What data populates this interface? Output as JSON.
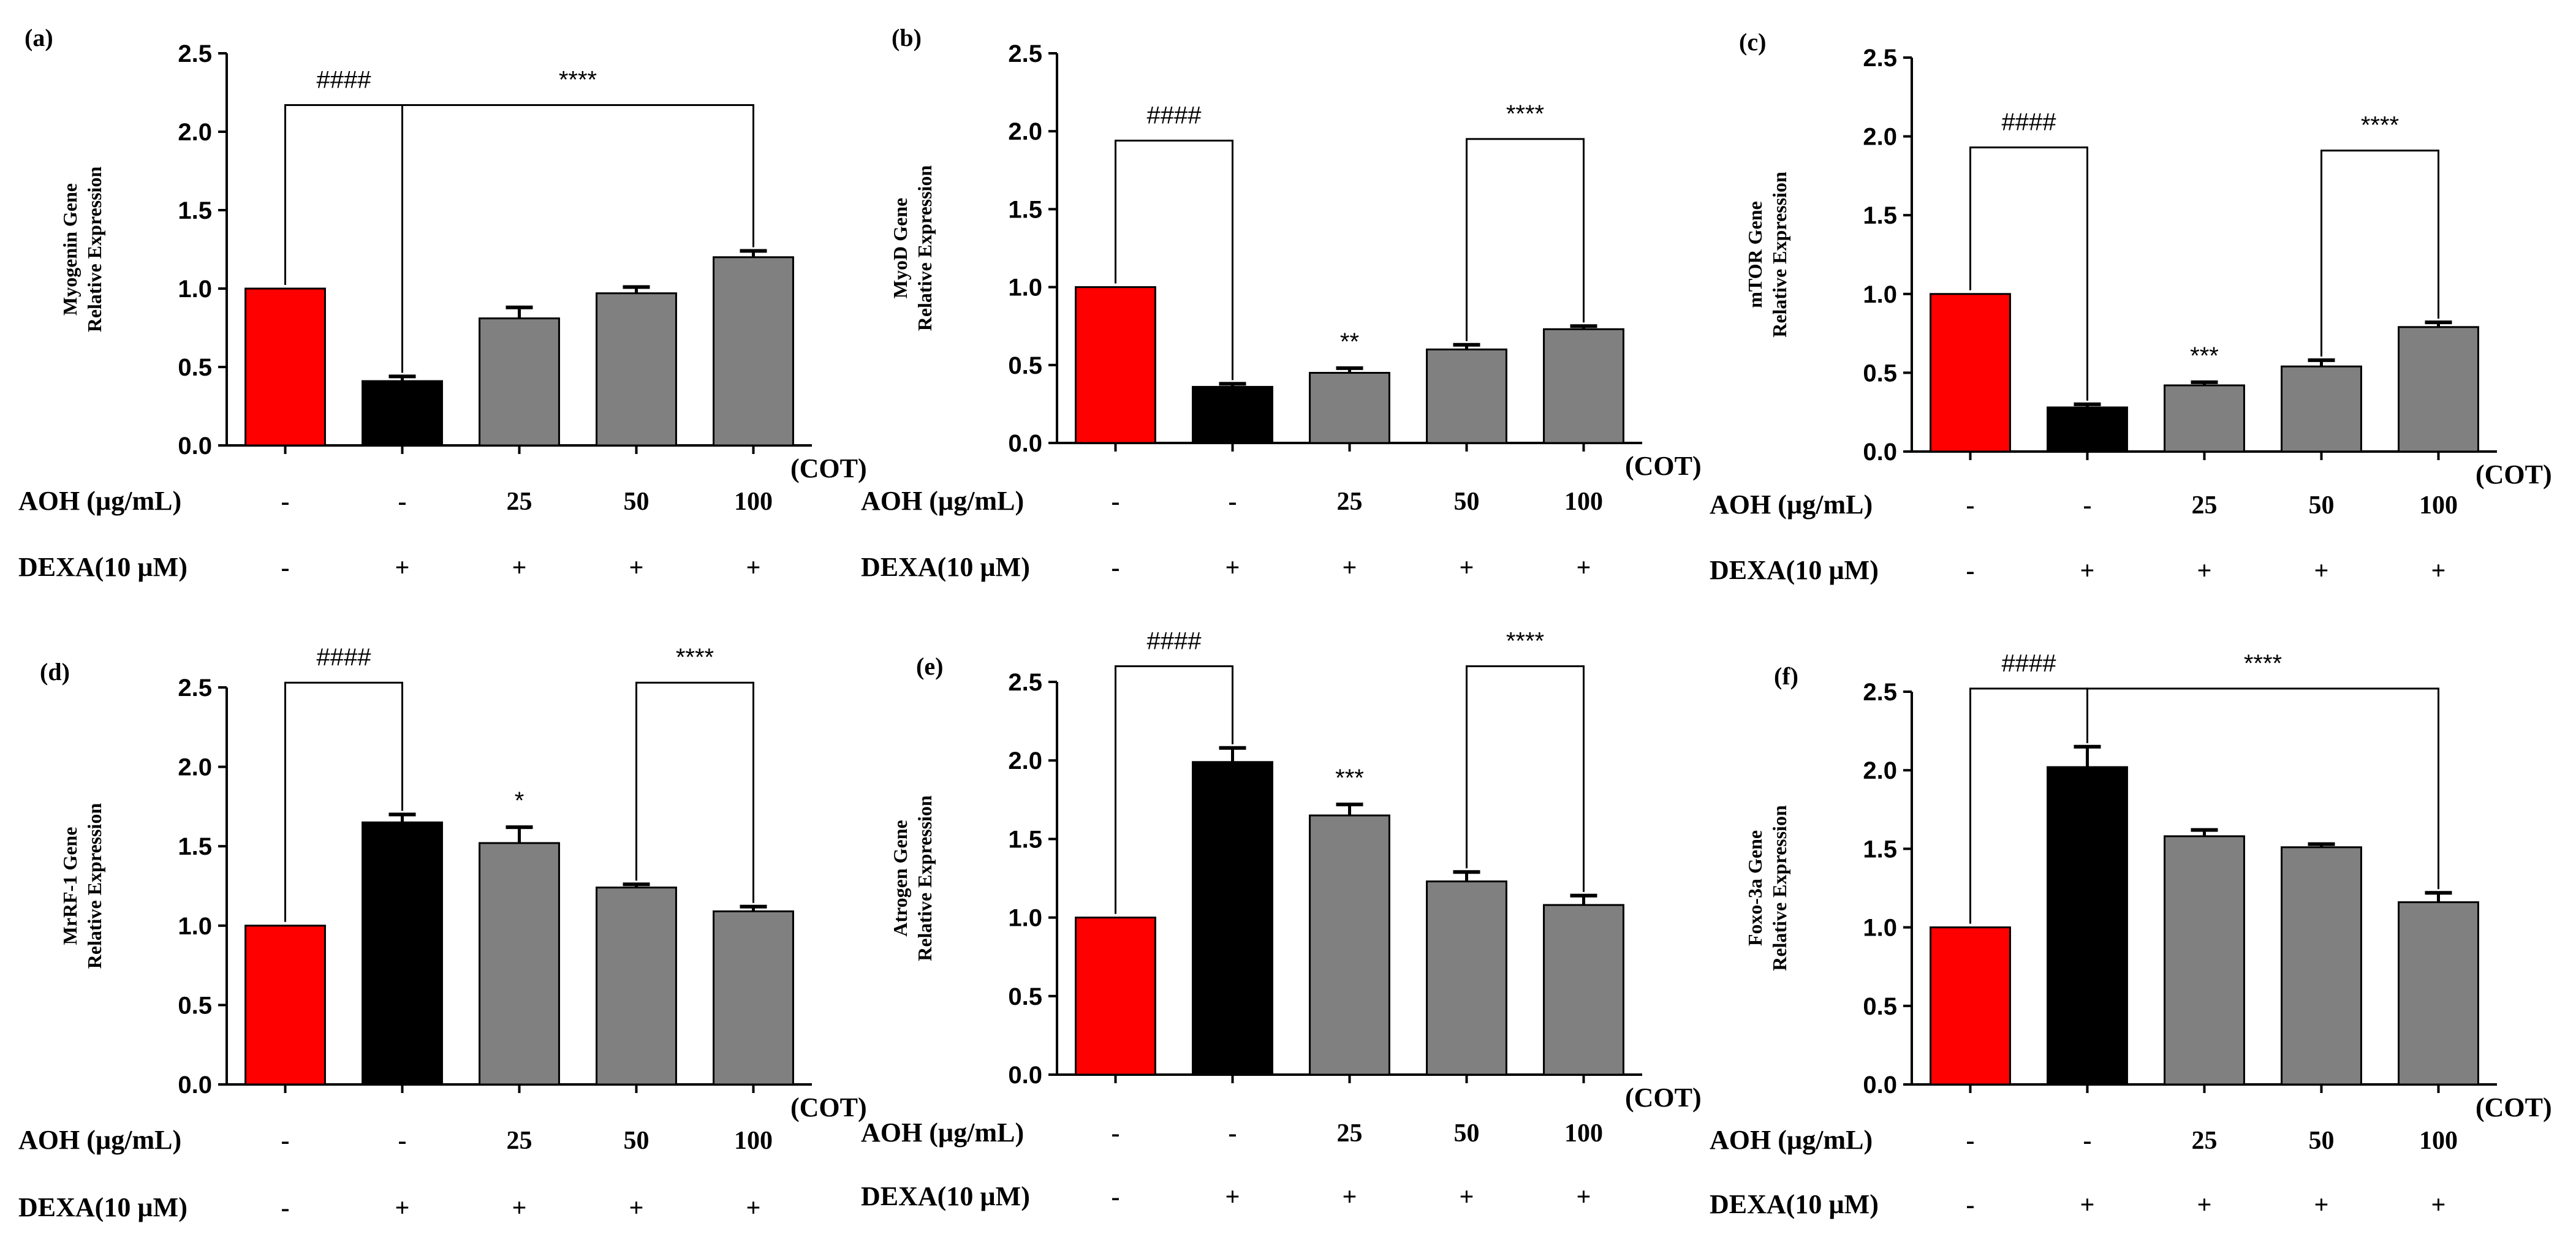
{
  "figure": {
    "row_labels": {
      "aoh": "AOH (µg/mL)",
      "dexa": "DEXA(10 µM)"
    },
    "x_unit_label": "(COT)",
    "aoh_values": [
      "-",
      "-",
      "25",
      "50",
      "100"
    ],
    "dexa_values": [
      "-",
      "+",
      "+",
      "+",
      "+"
    ],
    "colors": {
      "control": "#ff0000",
      "dexa": "#000000",
      "treated": "#808080",
      "axis": "#000000"
    }
  },
  "chart_data": [
    {
      "panel": "(a)",
      "type": "bar",
      "ylabel": "Myogenin Gene",
      "ylabel2": "Relative Expression",
      "ylim": [
        0,
        2.5
      ],
      "yticks": [
        "0.0",
        "0.5",
        "1.0",
        "1.5",
        "2.0",
        "2.5"
      ],
      "values": [
        1.0,
        0.41,
        0.81,
        0.97,
        1.2
      ],
      "errors": [
        0,
        0.03,
        0.07,
        0.04,
        0.04
      ],
      "bar_labels": [
        "",
        "",
        "",
        "",
        ""
      ],
      "brackets": [
        {
          "label": "####",
          "left": 0,
          "right": 1,
          "level": 2.17
        },
        {
          "label": "****",
          "left": 1,
          "right": 4,
          "level": 2.17
        }
      ]
    },
    {
      "panel": "(b)",
      "type": "bar",
      "ylabel": "MyoD Gene",
      "ylabel2": "Relative Expression",
      "ylim": [
        0,
        2.5
      ],
      "yticks": [
        "0.0",
        "0.5",
        "1.0",
        "1.5",
        "2.0",
        "2.5"
      ],
      "values": [
        1.0,
        0.36,
        0.45,
        0.6,
        0.73
      ],
      "errors": [
        0,
        0.02,
        0.03,
        0.03,
        0.02
      ],
      "bar_labels": [
        "",
        "",
        "**",
        "",
        ""
      ],
      "brackets": [
        {
          "label": "####",
          "left": 0,
          "right": 1,
          "level": 1.94
        },
        {
          "label": "****",
          "left": 3,
          "right": 4,
          "level": 1.95
        }
      ]
    },
    {
      "panel": "(c)",
      "type": "bar",
      "ylabel": "mTOR Gene",
      "ylabel2": "Relative Expression",
      "ylim": [
        0,
        2.5
      ],
      "yticks": [
        "0.0",
        "0.5",
        "1.0",
        "1.5",
        "2.0",
        "2.5"
      ],
      "values": [
        1.0,
        0.28,
        0.42,
        0.54,
        0.79
      ],
      "errors": [
        0,
        0.02,
        0.02,
        0.04,
        0.03
      ],
      "bar_labels": [
        "",
        "",
        "***",
        "",
        ""
      ],
      "brackets": [
        {
          "label": "####",
          "left": 0,
          "right": 1,
          "level": 1.93
        },
        {
          "label": "****",
          "left": 3,
          "right": 4,
          "level": 1.91
        }
      ]
    },
    {
      "panel": "(d)",
      "type": "bar",
      "ylabel": "MrRF-1 Gene",
      "ylabel2": "Relative Expression",
      "ylim": [
        0,
        2.5
      ],
      "yticks": [
        "0.0",
        "0.5",
        "1.0",
        "1.5",
        "2.0",
        "2.5"
      ],
      "values": [
        1.0,
        1.65,
        1.52,
        1.24,
        1.09
      ],
      "errors": [
        0,
        0.05,
        0.1,
        0.02,
        0.03
      ],
      "bar_labels": [
        "",
        "",
        "*",
        "",
        ""
      ],
      "brackets": [
        {
          "label": "####",
          "left": 0,
          "right": 1,
          "level": 2.53
        },
        {
          "label": "****",
          "left": 3,
          "right": 4,
          "level": 2.53
        }
      ]
    },
    {
      "panel": "(e)",
      "type": "bar",
      "ylabel": "Atrogen Gene",
      "ylabel2": "Relative Expression",
      "ylim": [
        0,
        2.5
      ],
      "yticks": [
        "0.0",
        "0.5",
        "1.0",
        "1.5",
        "2.0",
        "2.5"
      ],
      "values": [
        1.0,
        1.99,
        1.65,
        1.23,
        1.08
      ],
      "errors": [
        0,
        0.09,
        0.07,
        0.06,
        0.06
      ],
      "bar_labels": [
        "",
        "",
        "***",
        "",
        ""
      ],
      "brackets": [
        {
          "label": "####",
          "left": 0,
          "right": 1,
          "level": 2.6
        },
        {
          "label": "****",
          "left": 3,
          "right": 4,
          "level": 2.6
        }
      ]
    },
    {
      "panel": "(f)",
      "type": "bar",
      "ylabel": "Foxo-3a Gene",
      "ylabel2": "Relative Expression",
      "ylim": [
        0,
        2.5
      ],
      "yticks": [
        "0.0",
        "0.5",
        "1.0",
        "1.5",
        "2.0",
        "2.5"
      ],
      "values": [
        1.0,
        2.02,
        1.58,
        1.51,
        1.16
      ],
      "errors": [
        0,
        0.13,
        0.04,
        0.02,
        0.06
      ],
      "bar_labels": [
        "",
        "",
        "",
        "",
        ""
      ],
      "brackets": [
        {
          "label": "####",
          "left": 0,
          "right": 1,
          "level": 2.52
        },
        {
          "label": "****",
          "left": 1,
          "right": 4,
          "level": 2.52
        }
      ]
    }
  ]
}
